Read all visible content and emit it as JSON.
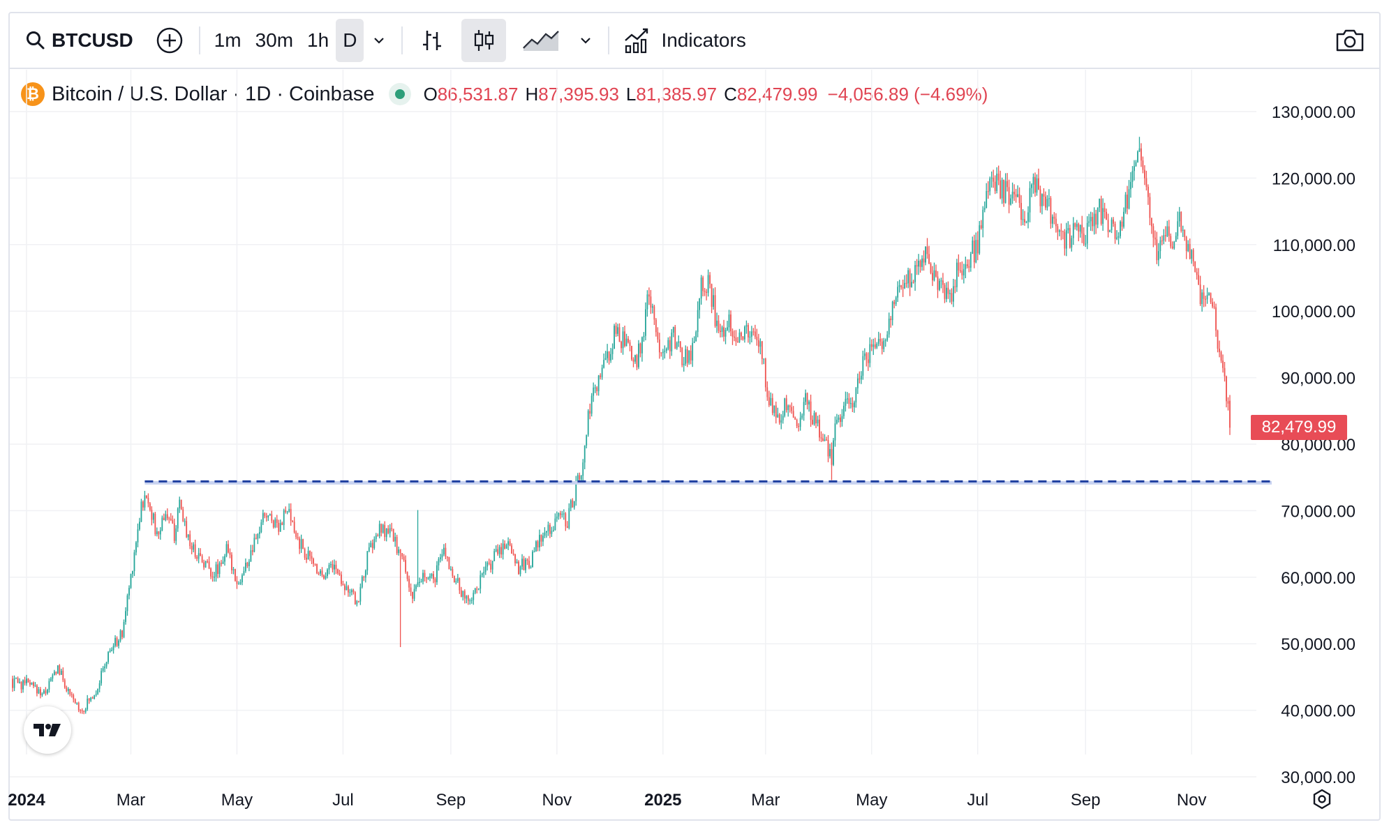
{
  "toolbar": {
    "symbol": "BTCUSD",
    "timeframes": [
      "1m",
      "30m",
      "1h",
      "D"
    ],
    "active_timeframe": "D",
    "indicators_label": "Indicators"
  },
  "legend": {
    "title": "Bitcoin / U.S. Dollar · 1D · Coinbase",
    "o_label": "O",
    "o_value": "86,531.87",
    "h_label": "H",
    "h_value": "87,395.93",
    "l_label": "L",
    "l_value": "81,385.97",
    "c_label": "C",
    "c_value": "82,479.99",
    "change": "−4,056.89 (−4.69%)"
  },
  "last_price_tag": "82,479.99",
  "colors": {
    "up": "#26a69a",
    "down": "#ef5350",
    "support_line": "#1e3fa0",
    "tag": "#e84c56"
  },
  "chart_data": {
    "type": "candlestick",
    "title": "Bitcoin / U.S. Dollar · 1D · Coinbase",
    "y_ticks": [
      "130,000.00",
      "120,000.00",
      "110,000.00",
      "100,000.00",
      "90,000.00",
      "80,000.00",
      "70,000.00",
      "60,000.00",
      "50,000.00",
      "40,000.00",
      "30,000.00"
    ],
    "y_tick_values": [
      130000,
      120000,
      110000,
      100000,
      90000,
      80000,
      70000,
      60000,
      50000,
      40000,
      30000
    ],
    "ylim": [
      28500,
      132500
    ],
    "x_ticks": [
      {
        "label": "2024",
        "day": 0,
        "bold": true
      },
      {
        "label": "Mar",
        "day": 60
      },
      {
        "label": "May",
        "day": 121
      },
      {
        "label": "Jul",
        "day": 182
      },
      {
        "label": "Sep",
        "day": 244
      },
      {
        "label": "Nov",
        "day": 305
      },
      {
        "label": "2025",
        "day": 366,
        "bold": true
      },
      {
        "label": "Mar",
        "day": 425
      },
      {
        "label": "May",
        "day": 486
      },
      {
        "label": "Jul",
        "day": 547
      },
      {
        "label": "Sep",
        "day": 609
      },
      {
        "label": "Nov",
        "day": 670
      }
    ],
    "x_range_days": [
      -10,
      723
    ],
    "last_day": 692,
    "support_level": 74400,
    "support_start_day": 68,
    "anchors": [
      [
        0,
        44000
      ],
      [
        10,
        42500
      ],
      [
        18,
        46500
      ],
      [
        25,
        42000
      ],
      [
        32,
        40000
      ],
      [
        40,
        43000
      ],
      [
        48,
        49000
      ],
      [
        55,
        51500
      ],
      [
        61,
        62000
      ],
      [
        66,
        71000
      ],
      [
        70,
        72000
      ],
      [
        75,
        66000
      ],
      [
        80,
        70000
      ],
      [
        85,
        66500
      ],
      [
        88,
        70500
      ],
      [
        95,
        64500
      ],
      [
        100,
        63000
      ],
      [
        108,
        60500
      ],
      [
        115,
        64000
      ],
      [
        122,
        59000
      ],
      [
        130,
        64000
      ],
      [
        137,
        69500
      ],
      [
        145,
        68000
      ],
      [
        150,
        70000
      ],
      [
        155,
        66000
      ],
      [
        162,
        63000
      ],
      [
        170,
        60500
      ],
      [
        176,
        62000
      ],
      [
        184,
        58500
      ],
      [
        190,
        56000
      ],
      [
        197,
        64000
      ],
      [
        203,
        67000
      ],
      [
        210,
        66500
      ],
      [
        217,
        62000
      ],
      [
        222,
        57000
      ],
      [
        228,
        60000
      ],
      [
        234,
        59500
      ],
      [
        240,
        64000
      ],
      [
        246,
        60000
      ],
      [
        252,
        56500
      ],
      [
        257,
        57500
      ],
      [
        263,
        60500
      ],
      [
        270,
        63500
      ],
      [
        277,
        65500
      ],
      [
        283,
        61500
      ],
      [
        290,
        62500
      ],
      [
        295,
        65500
      ],
      [
        302,
        67500
      ],
      [
        306,
        69500
      ],
      [
        311,
        68500
      ],
      [
        316,
        73500
      ],
      [
        320,
        76500
      ],
      [
        323,
        84000
      ],
      [
        328,
        89000
      ],
      [
        334,
        93000
      ],
      [
        339,
        97000
      ],
      [
        344,
        95000
      ],
      [
        350,
        92000
      ],
      [
        355,
        97000
      ],
      [
        358,
        103000
      ],
      [
        362,
        96000
      ],
      [
        366,
        94500
      ],
      [
        372,
        96000
      ],
      [
        377,
        93000
      ],
      [
        383,
        94000
      ],
      [
        388,
        105000
      ],
      [
        393,
        104000
      ],
      [
        398,
        96000
      ],
      [
        403,
        99000
      ],
      [
        408,
        96500
      ],
      [
        413,
        97000
      ],
      [
        418,
        96000
      ],
      [
        422,
        95000
      ],
      [
        426,
        88000
      ],
      [
        431,
        84000
      ],
      [
        437,
        86000
      ],
      [
        443,
        83000
      ],
      [
        448,
        86500
      ],
      [
        454,
        83000
      ],
      [
        458,
        81000
      ],
      [
        463,
        78000
      ],
      [
        466,
        84000
      ],
      [
        470,
        85000
      ],
      [
        476,
        87000
      ],
      [
        482,
        93500
      ],
      [
        488,
        94500
      ],
      [
        493,
        95000
      ],
      [
        499,
        102000
      ],
      [
        505,
        104500
      ],
      [
        510,
        106000
      ],
      [
        516,
        109000
      ],
      [
        522,
        105000
      ],
      [
        526,
        104000
      ],
      [
        531,
        102000
      ],
      [
        535,
        106000
      ],
      [
        540,
        108000
      ],
      [
        545,
        109000
      ],
      [
        548,
        111000
      ],
      [
        551,
        117000
      ],
      [
        556,
        119000
      ],
      [
        561,
        118000
      ],
      [
        566,
        117000
      ],
      [
        570,
        116000
      ],
      [
        575,
        115000
      ],
      [
        579,
        119000
      ],
      [
        583,
        117000
      ],
      [
        588,
        115000
      ],
      [
        593,
        111000
      ],
      [
        597,
        110000
      ],
      [
        602,
        112000
      ],
      [
        607,
        111000
      ],
      [
        612,
        113000
      ],
      [
        617,
        115500
      ],
      [
        622,
        113000
      ],
      [
        627,
        112000
      ],
      [
        631,
        114000
      ],
      [
        636,
        122000
      ],
      [
        640,
        123000
      ],
      [
        645,
        117000
      ],
      [
        650,
        108000
      ],
      [
        655,
        112000
      ],
      [
        658,
        109000
      ],
      [
        662,
        114000
      ],
      [
        666,
        111000
      ],
      [
        670,
        108000
      ],
      [
        673,
        104000
      ],
      [
        677,
        101000
      ],
      [
        681,
        103000
      ],
      [
        685,
        96000
      ],
      [
        689,
        89000
      ],
      [
        692,
        82480
      ]
    ]
  }
}
